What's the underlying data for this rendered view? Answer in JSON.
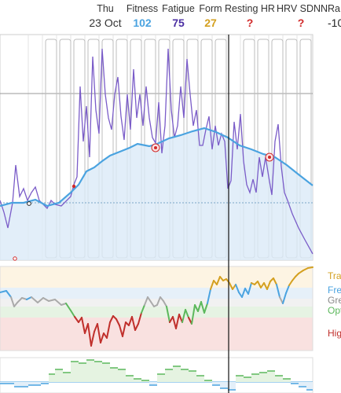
{
  "header": {
    "date": {
      "weekday": "Thu",
      "day": "23 Oct"
    },
    "metrics": [
      {
        "label": "Fitness",
        "value": "102",
        "color": "#4aa3e0"
      },
      {
        "label": "Fatigue",
        "value": "75",
        "color": "#4b2fa3"
      },
      {
        "label": "Form",
        "value": "27",
        "color": "#d4a020"
      },
      {
        "label": "Resting HR",
        "value": "?",
        "color": "#d12a2a"
      },
      {
        "label": "HRV SDNN",
        "value": "?",
        "color": "#d12a2a"
      },
      {
        "label": "Ra",
        "value": "-10",
        "color": "#222222"
      }
    ]
  },
  "form_zones": [
    {
      "label": "Tra",
      "color": "#d4a020"
    },
    {
      "label": "Fre",
      "color": "#4aa3e0"
    },
    {
      "label": "Gre",
      "color": "#8a8a8a"
    },
    {
      "label": "Opt",
      "color": "#5cb85c"
    },
    {
      "label": "Hig",
      "color": "#c0302c"
    }
  ],
  "colors": {
    "fitness": "#4aa3e0",
    "fatigue": "#7a5cc8",
    "fitness_fill": "#dbeaf7",
    "zone_transition": "#fdf4e3",
    "zone_fresh": "#e6f0f9",
    "zone_grey": "#f1f1f1",
    "zone_optimal": "#e6f3e3",
    "zone_high_risk": "#f9e1e0",
    "ramp_positive": "#5cb85c",
    "ramp_negative": "#4aa3e0",
    "weekly_bars": "#bbbbbb"
  }
}
